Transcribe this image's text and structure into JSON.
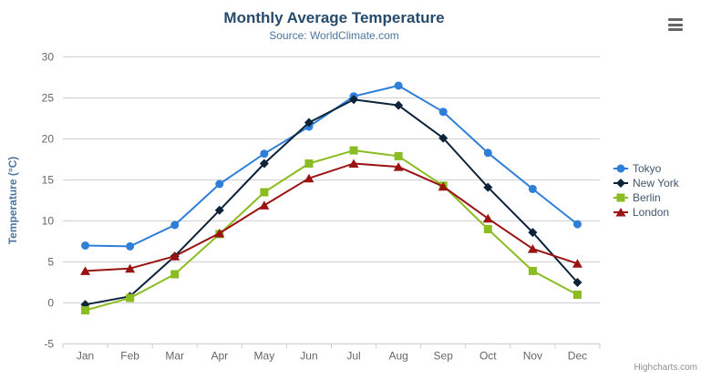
{
  "header": {
    "title": "Monthly Average Temperature",
    "subtitle": "Source: WorldClimate.com"
  },
  "credits": "Highcharts.com",
  "menu_icon": "hamburger-export-menu-icon",
  "colors": {
    "title": "#274b6d",
    "subtitle": "#4d759e",
    "axis_title": "#4d759e",
    "axis_labels": "#666666",
    "gridline": "#d0d0d0",
    "x_axis_line": "#c0d0e0",
    "legend_text": "#3e576f",
    "credits_text": "#909090",
    "background": "#ffffff"
  },
  "chart_data": {
    "type": "line",
    "title": "Monthly Average Temperature",
    "subtitle": "Source: WorldClimate.com",
    "xlabel": "",
    "ylabel": "Temperature (°C)",
    "ylim": [
      -5,
      30
    ],
    "ytick_interval": 5,
    "grid": true,
    "legend_position": "right",
    "categories": [
      "Jan",
      "Feb",
      "Mar",
      "Apr",
      "May",
      "Jun",
      "Jul",
      "Aug",
      "Sep",
      "Oct",
      "Nov",
      "Dec"
    ],
    "series": [
      {
        "name": "Tokyo",
        "color": "#2f7ed8",
        "marker": "circle",
        "values": [
          7.0,
          6.9,
          9.5,
          14.5,
          18.2,
          21.5,
          25.2,
          26.5,
          23.3,
          18.3,
          13.9,
          9.6
        ]
      },
      {
        "name": "New York",
        "color": "#0d233a",
        "marker": "diamond",
        "values": [
          -0.2,
          0.8,
          5.7,
          11.3,
          17.0,
          22.0,
          24.8,
          24.1,
          20.1,
          14.1,
          8.6,
          2.5
        ]
      },
      {
        "name": "Berlin",
        "color": "#8bbc21",
        "marker": "square",
        "values": [
          -0.9,
          0.6,
          3.5,
          8.4,
          13.5,
          17.0,
          18.6,
          17.9,
          14.3,
          9.0,
          3.9,
          1.0
        ]
      },
      {
        "name": "London",
        "color": "#9a1313",
        "marker": "triangle",
        "values": [
          3.9,
          4.2,
          5.7,
          8.5,
          11.9,
          15.2,
          17.0,
          16.6,
          14.2,
          10.3,
          6.6,
          4.8
        ]
      }
    ]
  }
}
